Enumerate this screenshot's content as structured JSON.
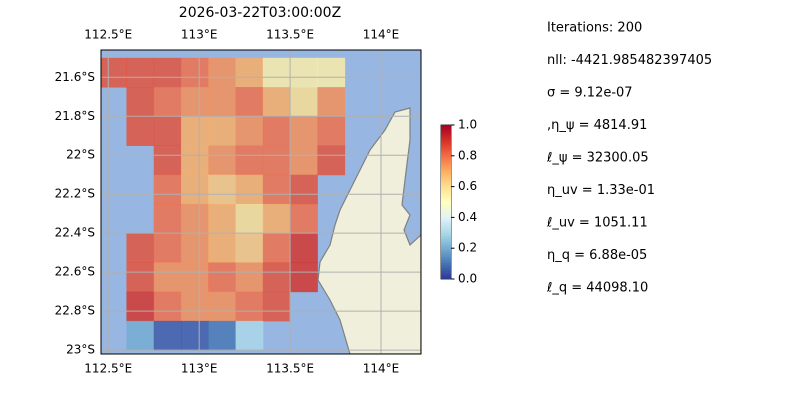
{
  "chart_data": {
    "type": "heatmap",
    "title": "2026-03-22T03:00:00Z",
    "xlim": [
      112.46,
      114.22
    ],
    "ylim": [
      -23.02,
      -21.46
    ],
    "xticks": [
      {
        "value": 112.5,
        "label": "112.5°E"
      },
      {
        "value": 113,
        "label": "113°E"
      },
      {
        "value": 113.5,
        "label": "113.5°E"
      },
      {
        "value": 114,
        "label": "114°E"
      }
    ],
    "yticks": [
      {
        "value": -21.6,
        "label": "21.6°S"
      },
      {
        "value": -21.8,
        "label": "21.8°S"
      },
      {
        "value": -22,
        "label": "22°S"
      },
      {
        "value": -22.2,
        "label": "22.2°S"
      },
      {
        "value": -22.4,
        "label": "22.4°S"
      },
      {
        "value": -22.6,
        "label": "22.6°S"
      },
      {
        "value": -22.8,
        "label": "22.8°S"
      },
      {
        "value": -23,
        "label": "23°S"
      }
    ],
    "grid": true,
    "x_edges": [
      112.45,
      112.6,
      112.75,
      112.9,
      113.05,
      113.2,
      113.35,
      113.5,
      113.65,
      113.8,
      113.95
    ],
    "y_edges": [
      -21.5,
      -21.65,
      -21.8,
      -21.95,
      -22.1,
      -22.25,
      -22.4,
      -22.55,
      -22.7,
      -22.85,
      -23.0
    ],
    "values": [
      [
        0.85,
        0.85,
        0.85,
        0.8,
        0.75,
        0.7,
        0.55,
        0.55,
        0.55,
        null
      ],
      [
        null,
        0.85,
        0.8,
        0.75,
        0.75,
        0.8,
        0.7,
        0.6,
        0.75,
        null
      ],
      [
        null,
        0.85,
        0.85,
        0.7,
        0.7,
        0.75,
        0.8,
        0.75,
        0.8,
        null
      ],
      [
        null,
        null,
        0.85,
        0.7,
        0.75,
        0.8,
        0.8,
        0.75,
        0.85,
        null
      ],
      [
        null,
        null,
        0.8,
        0.7,
        0.65,
        0.7,
        0.8,
        0.85,
        null,
        null
      ],
      [
        null,
        null,
        0.8,
        0.75,
        0.7,
        0.6,
        0.7,
        0.8,
        null,
        null
      ],
      [
        null,
        0.85,
        0.8,
        0.75,
        0.7,
        0.65,
        0.8,
        0.9,
        null,
        null
      ],
      [
        null,
        0.85,
        0.75,
        0.75,
        0.8,
        0.75,
        0.85,
        0.9,
        null,
        null
      ],
      [
        null,
        0.9,
        0.8,
        0.75,
        0.75,
        0.8,
        0.85,
        null,
        null,
        null
      ],
      [
        null,
        0.2,
        0.05,
        0.05,
        0.1,
        0.3,
        null,
        null,
        null,
        null
      ]
    ],
    "colormap": [
      "#313695",
      "#4575b4",
      "#74add1",
      "#abd9e9",
      "#e0f3f8",
      "#ffffbf",
      "#fee090",
      "#fdae61",
      "#f46d43",
      "#d73027",
      "#a50026"
    ],
    "clim": [
      0,
      1
    ],
    "cticks": [
      {
        "value": 0,
        "label": "0.0"
      },
      {
        "value": 0.2,
        "label": "0.2"
      },
      {
        "value": 0.4,
        "label": "0.4"
      },
      {
        "value": 0.6,
        "label": "0.6"
      },
      {
        "value": 0.8,
        "label": "0.8"
      },
      {
        "value": 1,
        "label": "1.0"
      }
    ],
    "annotations": [
      "Iterations: 200",
      "nll: -4421.985482397405",
      "σ = 9.12e-07",
      ",η_ψ = 4814.91",
      "ℓ_ψ = 32300.05",
      "η_uv = 1.33e-01",
      "ℓ_uv = 1051.11",
      "η_q = 6.88e-05",
      "ℓ_q = 44098.10"
    ]
  }
}
